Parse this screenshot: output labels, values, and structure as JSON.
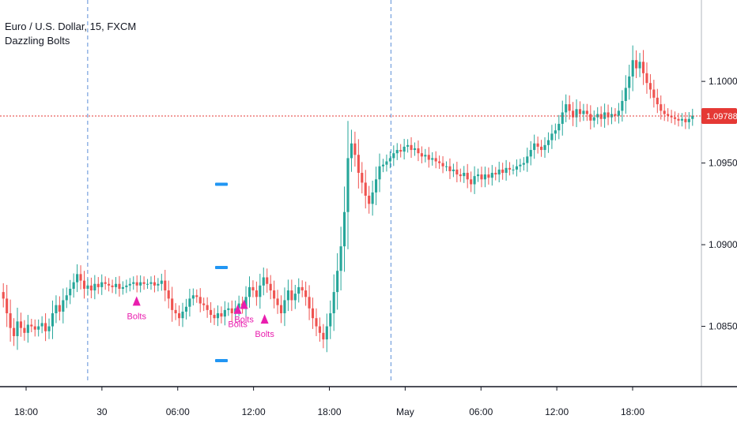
{
  "chart_data": {
    "type": "candlestick",
    "symbol_title": "Euro / U.S. Dollar, 15, FXCM",
    "indicator_name": "Dazzling Bolts",
    "y_range": [
      1.0815,
      1.1045
    ],
    "y_ticks": [
      "1.10000",
      "1.09500",
      "1.09000",
      "1.08500"
    ],
    "x_ticks": [
      "18:00",
      "30",
      "06:00",
      "12:00",
      "18:00",
      "May",
      "06:00",
      "12:00",
      "18:00"
    ],
    "last_price_label": "1.09788",
    "last_price": 1.09788,
    "session_breaks": [
      "30",
      "May"
    ],
    "signal_label": "Bolts",
    "signals": [
      {
        "x_index": 2,
        "price": 1.0867
      },
      {
        "x_index": 3,
        "price": 1.0862
      },
      {
        "x_index": 3,
        "price": 1.0865
      },
      {
        "x_index": 3,
        "price": 1.0856
      }
    ],
    "level_marks": [
      1.0937,
      1.0886,
      1.0829
    ],
    "colors": {
      "up": "#26a69a",
      "down": "#ef5350",
      "signal": "#e91eae",
      "level": "#2196f3",
      "session_line": "#5b8ed8",
      "price_line": "#e53935"
    },
    "candles": [
      1.0867,
      1.0858,
      1.0849,
      1.0844,
      1.0853,
      1.0849,
      1.0846,
      1.0851,
      1.085,
      1.0848,
      1.085,
      1.0852,
      1.0847,
      1.085,
      1.0858,
      1.0863,
      1.0859,
      1.0866,
      1.0869,
      1.0873,
      1.0877,
      1.0882,
      1.0878,
      1.0873,
      1.0875,
      1.0872,
      1.0876,
      1.0874,
      1.0877,
      1.0876,
      1.0875,
      1.0874,
      1.0876,
      1.0873,
      1.0874,
      1.0875,
      1.0876,
      1.0877,
      1.0875,
      1.0877,
      1.0876,
      1.0876,
      1.0877,
      1.0875,
      1.0876,
      1.0878,
      1.0872,
      1.0867,
      1.086,
      1.0858,
      1.0855,
      1.0859,
      1.0862,
      1.0867,
      1.0869,
      1.0868,
      1.0864,
      1.0863,
      1.086,
      1.0857,
      1.0855,
      1.0858,
      1.0856,
      1.086,
      1.0861,
      1.0858,
      1.0861,
      1.0864,
      1.0862,
      1.0868,
      1.0874,
      1.0872,
      1.0868,
      1.0875,
      1.088,
      1.0876,
      1.0872,
      1.0867,
      1.0863,
      1.0858,
      1.0866,
      1.0872,
      1.0866,
      1.087,
      1.0874,
      1.0872,
      1.0868,
      1.0861,
      1.0855,
      1.085,
      1.0846,
      1.0842,
      1.085,
      1.0858,
      1.0871,
      1.0884,
      1.0899,
      1.092,
      1.0953,
      1.0962,
      1.0955,
      1.0944,
      1.0938,
      1.093,
      1.0925,
      1.0932,
      1.094,
      1.0948,
      1.0949,
      1.0951,
      1.0953,
      1.0956,
      1.0958,
      1.0957,
      1.096,
      1.0961,
      1.0958,
      1.0959,
      1.0956,
      1.0954,
      1.0955,
      1.0952,
      1.0953,
      1.0951,
      1.095,
      1.0948,
      1.0948,
      1.0945,
      1.0946,
      1.0943,
      1.0942,
      1.0944,
      1.094,
      1.0937,
      1.0942,
      1.0943,
      1.094,
      1.0943,
      1.0941,
      1.0944,
      1.0943,
      1.0946,
      1.0944,
      1.0947,
      1.0946,
      1.0946,
      1.0948,
      1.0949,
      1.095,
      1.0954,
      1.0958,
      1.0962,
      1.096,
      1.0958,
      1.0961,
      1.0964,
      1.0968,
      1.097,
      1.0974,
      1.0981,
      1.0986,
      1.0982,
      1.0978,
      1.0983,
      1.098,
      1.0982,
      1.098,
      1.0976,
      1.0978,
      1.098,
      1.0977,
      1.0981,
      1.0978,
      1.098,
      1.0979,
      1.0982,
      1.0988,
      1.0996,
      1.1003,
      1.1013,
      1.1008,
      1.1012,
      1.1005,
      1.0999,
      1.0995,
      1.099,
      1.0986,
      1.0982,
      1.098,
      1.0979,
      1.0978,
      1.0977,
      1.0976,
      1.0977,
      1.0975,
      1.0977,
      1.0979
    ]
  }
}
